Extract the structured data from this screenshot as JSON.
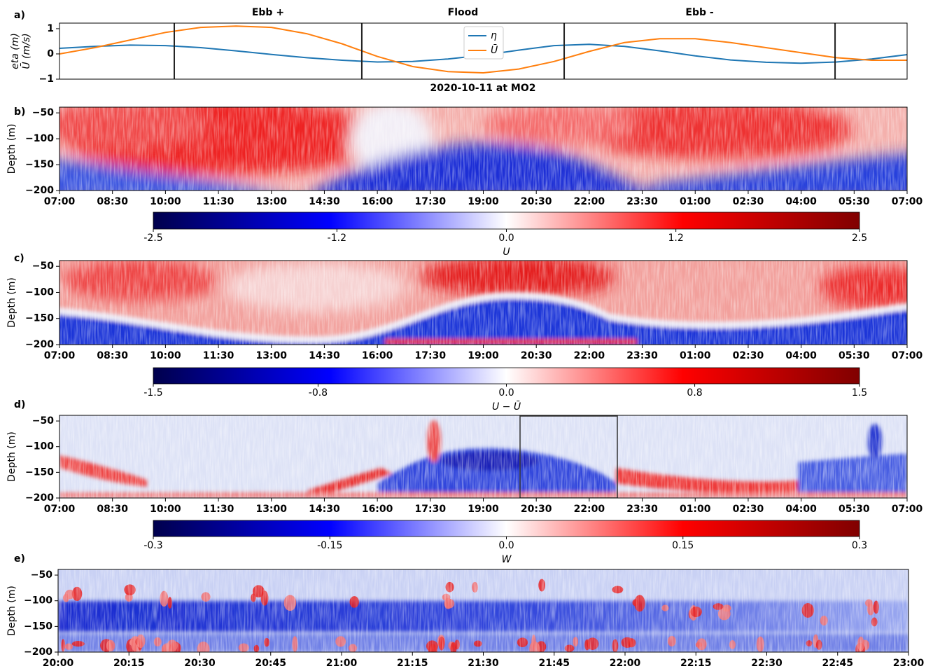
{
  "title": "2020-10-11 at MO2",
  "chart_data": [
    {
      "type": "line",
      "panel_label": "a)",
      "ylabel": [
        "eta (m)",
        "Ū (m/s)"
      ],
      "x": [
        0,
        1,
        2,
        3,
        4,
        5,
        6,
        7,
        8,
        9,
        10,
        11,
        12,
        13,
        14,
        15,
        16,
        17,
        18,
        19,
        20,
        21,
        22,
        23,
        24
      ],
      "xlim": [
        0,
        24
      ],
      "ylim": [
        -1,
        1.22
      ],
      "yticks": [
        1,
        0,
        {
          "value": -1,
          "label": "−1"
        }
      ],
      "series": [
        {
          "name": "η",
          "color": "#1f77b4",
          "values": [
            0.22,
            0.3,
            0.35,
            0.33,
            0.25,
            0.12,
            -0.02,
            -0.15,
            -0.25,
            -0.32,
            -0.3,
            -0.2,
            -0.05,
            0.15,
            0.33,
            0.38,
            0.3,
            0.12,
            -0.08,
            -0.24,
            -0.33,
            -0.37,
            -0.32,
            -0.2,
            -0.03
          ]
        },
        {
          "name": "Ū",
          "color": "#ff7f0e",
          "values": [
            0.0,
            0.25,
            0.55,
            0.85,
            1.05,
            1.1,
            1.05,
            0.8,
            0.4,
            -0.1,
            -0.5,
            -0.7,
            -0.75,
            -0.6,
            -0.3,
            0.1,
            0.45,
            0.6,
            0.6,
            0.45,
            0.25,
            0.05,
            -0.15,
            -0.25,
            -0.25
          ]
        }
      ],
      "vlines": [
        3.25,
        8.56,
        14.29,
        21.96
      ],
      "annotations": [
        "Ebb +",
        "Flood",
        "Ebb -"
      ],
      "legend": "upper center"
    },
    {
      "type": "heatmap",
      "panel_label": "b)",
      "ylabel": "Depth (m)",
      "ylim": [
        -200,
        -39
      ],
      "yticks": [
        {
          "value": -50,
          "label": "−50"
        },
        {
          "value": -100,
          "label": "−100"
        },
        {
          "value": -150,
          "label": "−150"
        },
        {
          "value": -200,
          "label": "−200"
        }
      ],
      "xticks": [
        "07:00",
        "08:30",
        "10:00",
        "11:30",
        "13:00",
        "14:30",
        "16:00",
        "17:30",
        "19:00",
        "20:30",
        "22:00",
        "23:30",
        "01:00",
        "02:30",
        "04:00",
        "05:30",
        "07:00"
      ],
      "colorbar": {
        "label": "U",
        "lim": [
          -2.5,
          2.5
        ],
        "ticks": [
          -2.5,
          -1.2,
          {
            "value": 0,
            "label": "0.0"
          },
          1.2,
          2.5
        ]
      }
    },
    {
      "type": "heatmap",
      "panel_label": "c)",
      "ylabel": "Depth (m)",
      "ylim": [
        -200,
        -39
      ],
      "yticks": [
        {
          "value": -50,
          "label": "−50"
        },
        {
          "value": -100,
          "label": "−100"
        },
        {
          "value": -150,
          "label": "−150"
        },
        {
          "value": -200,
          "label": "−200"
        }
      ],
      "xticks": [
        "07:00",
        "08:30",
        "10:00",
        "11:30",
        "13:00",
        "14:30",
        "16:00",
        "17:30",
        "19:00",
        "20:30",
        "22:00",
        "23:30",
        "01:00",
        "02:30",
        "04:00",
        "05:30",
        "07:00"
      ],
      "colorbar": {
        "label": "U − Ū",
        "lim": [
          -1.5,
          1.5
        ],
        "ticks": [
          -1.5,
          -0.8,
          {
            "value": 0,
            "label": "0.0"
          },
          0.8,
          1.5
        ]
      }
    },
    {
      "type": "heatmap",
      "panel_label": "d)",
      "ylabel": "Depth (m)",
      "ylim": [
        -200,
        -39
      ],
      "yticks": [
        {
          "value": -50,
          "label": "−50"
        },
        {
          "value": -100,
          "label": "−100"
        },
        {
          "value": -150,
          "label": "−150"
        },
        {
          "value": -200,
          "label": "−200"
        }
      ],
      "xticks": [
        "07:00",
        "08:30",
        "10:00",
        "11:30",
        "13:00",
        "14:30",
        "16:00",
        "17:30",
        "19:00",
        "20:30",
        "22:00",
        "23:30",
        "01:00",
        "02:30",
        "04:00",
        "05:30",
        "07:00"
      ],
      "colorbar": {
        "label": "W",
        "lim": [
          -0.3,
          0.3
        ],
        "ticks": [
          -0.3,
          -0.15,
          {
            "value": 0,
            "label": "0.0"
          },
          0.15,
          0.3
        ]
      }
    },
    {
      "type": "heatmap",
      "panel_label": "e)",
      "ylabel": "Depth (m)",
      "ylim": [
        -200,
        -39
      ],
      "yticks": [
        {
          "value": -50,
          "label": "−50"
        },
        {
          "value": -100,
          "label": "−100"
        },
        {
          "value": -150,
          "label": "−150"
        },
        {
          "value": -200,
          "label": "−200"
        }
      ],
      "xticks": [
        "20:00",
        "20:15",
        "20:30",
        "20:45",
        "21:00",
        "21:15",
        "21:30",
        "21:45",
        "22:00",
        "22:15",
        "22:30",
        "22:45",
        "23:00"
      ]
    }
  ]
}
